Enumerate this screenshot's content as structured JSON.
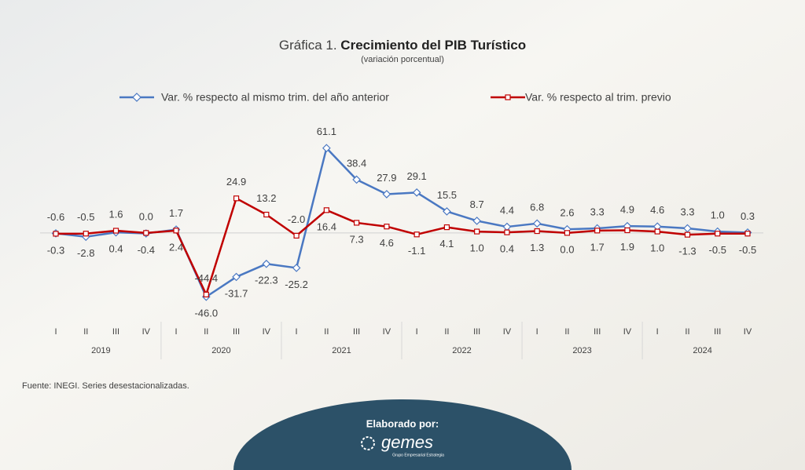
{
  "chart_data": {
    "type": "line",
    "title_prefix": "Gráfica 1.",
    "title": "Crecimiento del PIB Turístico",
    "subtitle": "(variación porcentual)",
    "categories": [
      "I",
      "II",
      "III",
      "IV",
      "I",
      "II",
      "III",
      "IV",
      "I",
      "II",
      "III",
      "IV",
      "I",
      "II",
      "III",
      "IV",
      "I",
      "II",
      "III",
      "IV",
      "I",
      "II",
      "III",
      "IV"
    ],
    "groups": [
      "2019",
      "2020",
      "2021",
      "2022",
      "2023",
      "2024"
    ],
    "series": [
      {
        "name": "Var. % respecto al mismo trim. del año anterior",
        "color": "#4a78c2",
        "values": [
          -0.3,
          -2.8,
          0.4,
          -0.4,
          2.4,
          -46.0,
          -31.7,
          -22.3,
          -25.2,
          61.1,
          38.4,
          27.9,
          29.1,
          15.5,
          8.7,
          4.4,
          6.8,
          2.6,
          3.3,
          4.9,
          4.6,
          3.3,
          1.0,
          0.3
        ],
        "value_labels": [
          "-0.3",
          "-2.8",
          "0.4",
          "-0.4",
          "2.4",
          "-46.0",
          "-31.7",
          "-22.3",
          "-25.2",
          "61.1",
          "38.4",
          "27.9",
          "29.1",
          "15.5",
          "8.7",
          "4.4",
          "6.8",
          "2.6",
          "3.3",
          "4.9",
          "4.6",
          "3.3",
          "1.0",
          "0.3"
        ]
      },
      {
        "name": "Var. % respecto al trim. previo",
        "color": "#c00000",
        "values": [
          -0.6,
          -0.5,
          1.6,
          0.0,
          1.7,
          -44.4,
          24.9,
          13.2,
          -2.0,
          16.4,
          7.3,
          4.6,
          -1.1,
          4.1,
          1.0,
          0.4,
          1.3,
          0.0,
          1.7,
          1.9,
          1.0,
          -1.3,
          -0.5,
          -0.5
        ],
        "value_labels": [
          "-0.6",
          "-0.5",
          "1.6",
          "0.0",
          "1.7",
          "-44.4",
          "24.9",
          "13.2",
          "-2.0",
          "16.4",
          "7.3",
          "4.6",
          "-1.1",
          "4.1",
          "1.0",
          "0.4",
          "1.3",
          "0.0",
          "1.7",
          "1.9",
          "1.0",
          "-1.3",
          "-0.5",
          "-0.5"
        ]
      }
    ],
    "ylim": [
      -60,
      70
    ],
    "legend": "top",
    "source": "Fuente: INEGI. Series desestacionalizadas."
  },
  "footer": {
    "label": "Elaborado por:",
    "logo": "gemes",
    "tagline": "Grupo Empresarial Estrategia"
  }
}
